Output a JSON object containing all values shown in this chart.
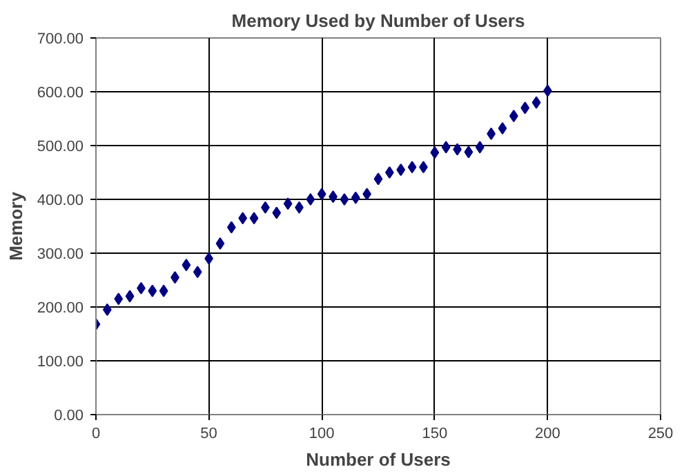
{
  "chart_data": {
    "type": "scatter",
    "title": "Memory Used by Number of Users",
    "xlabel": "Number of Users",
    "ylabel": "Memory",
    "x": [
      0,
      5,
      10,
      15,
      20,
      25,
      30,
      35,
      40,
      45,
      50,
      55,
      60,
      65,
      70,
      75,
      80,
      85,
      90,
      95,
      100,
      105,
      110,
      115,
      120,
      125,
      130,
      135,
      140,
      145,
      150,
      155,
      160,
      165,
      170,
      175,
      180,
      185,
      190,
      195,
      200
    ],
    "series": [
      {
        "color": "#000080",
        "values": [
          168,
          195,
          215,
          220,
          235,
          230,
          230,
          255,
          278,
          265,
          290,
          318,
          348,
          365,
          365,
          385,
          375,
          392,
          385,
          400,
          410,
          405,
          400,
          403,
          410,
          438,
          450,
          455,
          460,
          460,
          487,
          497,
          493,
          488,
          497,
          522,
          532,
          555,
          570,
          580,
          602
        ]
      }
    ],
    "marker": "diamond",
    "grid": true,
    "xlim": [
      0,
      250
    ],
    "xticks": [
      0,
      50,
      100,
      150,
      200,
      250
    ],
    "ylim": [
      0,
      700
    ],
    "yticks": [
      {
        "value": 0,
        "label": "0.00"
      },
      {
        "value": 100,
        "label": "100.00"
      },
      {
        "value": 200,
        "label": "200.00"
      },
      {
        "value": 300,
        "label": "300.00"
      },
      {
        "value": 400,
        "label": "400.00"
      },
      {
        "value": 500,
        "label": "500.00"
      },
      {
        "value": 600,
        "label": "600.00"
      },
      {
        "value": 700,
        "label": "700.00"
      }
    ]
  }
}
